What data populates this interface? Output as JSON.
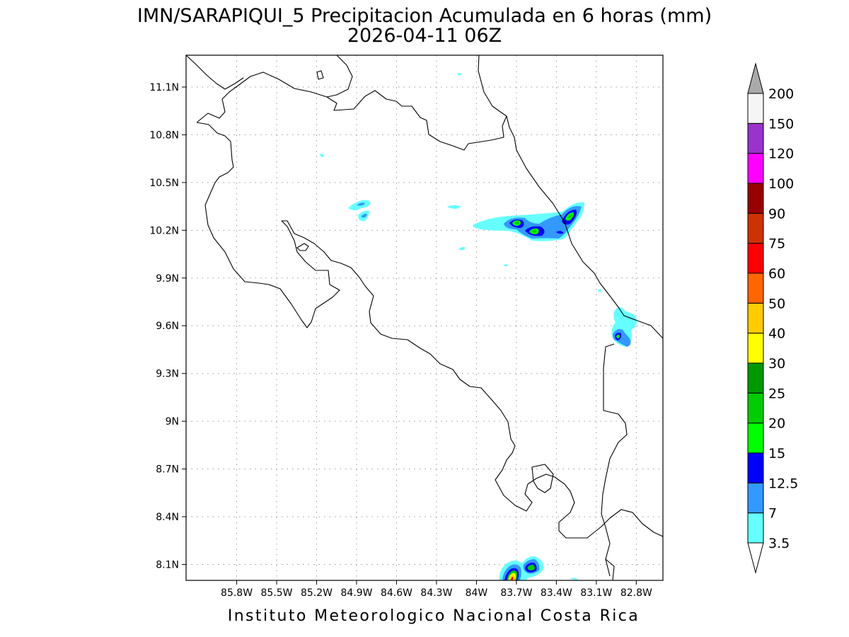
{
  "title": {
    "line1": "IMN/SARAPIQUI_5 Precipitacion Acumulada en 6 horas (mm)",
    "line2": "2026-04-11 06Z"
  },
  "footer": "Instituto Meteorologico Nacional Costa Rica",
  "map": {
    "lon_range": [
      -86.18,
      -82.6
    ],
    "lat_range": [
      8.0,
      11.3
    ],
    "lon_ticks": [
      {
        "value": -85.8,
        "label": "85.8W"
      },
      {
        "value": -85.5,
        "label": "85.5W"
      },
      {
        "value": -85.2,
        "label": "85.2W"
      },
      {
        "value": -84.9,
        "label": "84.9W"
      },
      {
        "value": -84.6,
        "label": "84.6W"
      },
      {
        "value": -84.3,
        "label": "84.3W"
      },
      {
        "value": -84.0,
        "label": "84W"
      },
      {
        "value": -83.7,
        "label": "83.7W"
      },
      {
        "value": -83.4,
        "label": "83.4W"
      },
      {
        "value": -83.1,
        "label": "83.1W"
      },
      {
        "value": -82.8,
        "label": "82.8W"
      }
    ],
    "lat_ticks": [
      {
        "value": 8.1,
        "label": "8.1N"
      },
      {
        "value": 8.4,
        "label": "8.4N"
      },
      {
        "value": 8.7,
        "label": "8.7N"
      },
      {
        "value": 9.0,
        "label": "9N"
      },
      {
        "value": 9.3,
        "label": "9.3N"
      },
      {
        "value": 9.6,
        "label": "9.6N"
      },
      {
        "value": 9.9,
        "label": "9.9N"
      },
      {
        "value": 10.2,
        "label": "10.2N"
      },
      {
        "value": 10.5,
        "label": "10.5N"
      },
      {
        "value": 10.8,
        "label": "10.8N"
      },
      {
        "value": 11.1,
        "label": "11.1N"
      }
    ],
    "grid": true,
    "precip_cells": [
      {
        "lon": -83.53,
        "lat": 10.24,
        "max_mm": 25
      },
      {
        "lon": -83.37,
        "lat": 10.19,
        "max_mm": 25
      },
      {
        "lon": -83.17,
        "lat": 10.28,
        "max_mm": 25
      },
      {
        "lon": -83.25,
        "lat": 10.2,
        "max_mm": 12.5
      },
      {
        "lon": -84.68,
        "lat": 10.37,
        "max_mm": 12.5
      },
      {
        "lon": -84.67,
        "lat": 10.29,
        "max_mm": 7
      },
      {
        "lon": -82.83,
        "lat": 9.54,
        "max_mm": 25
      },
      {
        "lon": -82.79,
        "lat": 9.5,
        "max_mm": 7
      },
      {
        "lon": -83.57,
        "lat": 8.05,
        "max_mm": 50
      },
      {
        "lon": -83.47,
        "lat": 8.09,
        "max_mm": 25
      },
      {
        "lon": -83.9,
        "lat": 10.27,
        "max_mm": 3.5
      },
      {
        "lon": -84.05,
        "lat": 10.35,
        "max_mm": 3.5
      },
      {
        "lon": -84.0,
        "lat": 10.09,
        "max_mm": 3.5
      },
      {
        "lon": -84.98,
        "lat": 10.67,
        "max_mm": 3.5
      },
      {
        "lon": -82.82,
        "lat": 9.68,
        "max_mm": 3.5
      }
    ]
  },
  "legend": {
    "levels": [
      "3.5",
      "7",
      "12.5",
      "15",
      "20",
      "25",
      "30",
      "40",
      "50",
      "60",
      "75",
      "90",
      "100",
      "120",
      "150",
      "200"
    ],
    "colors": [
      "#ffffff",
      "#66ffff",
      "#3399ff",
      "#0000ff",
      "#00ff00",
      "#00cc00",
      "#009900",
      "#ffff00",
      "#ffcc00",
      "#ff6600",
      "#ff0000",
      "#cc3300",
      "#990000",
      "#ff00ff",
      "#9933cc",
      "#f5f5f5",
      "#aaaaaa"
    ]
  }
}
